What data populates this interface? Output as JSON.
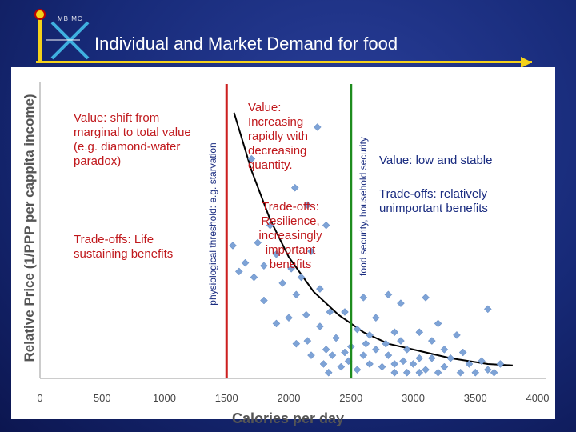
{
  "header": {
    "title": "Individual and Market Demand for food",
    "logo_text": "MB MC"
  },
  "annotations": {
    "left_value": "Value: shift from marginal to total value (e.g. diamond-water paradox)",
    "left_tradeoff": "Trade-offs: Life sustaining benefits",
    "middle_value": "Value: Increasing rapidly with decreasing quantity.",
    "middle_tradeoff": "Trade-offs: Resilience, increasingly important benefits",
    "right_value": "Value: low and stable",
    "right_tradeoff": "Trade-offs: relatively unimportant benefits",
    "threshold_red": "physiological threshold: e.g. starvation",
    "threshold_green": "food security, household security"
  },
  "colors": {
    "red_line": "#cc1f1f",
    "green_line": "#1e8c1e",
    "points": "#7ea3d6",
    "curve": "#000000",
    "red_text": "#c0181c",
    "blue_text": "#1a2c80"
  },
  "chart_data": {
    "type": "scatter",
    "xlabel": "Calories per day",
    "ylabel": "Relative Price (1/PPP per cappita income)",
    "xlim": [
      0,
      4000
    ],
    "xticks": [
      "0",
      "500",
      "1000",
      "1500",
      "2000",
      "2500",
      "3000",
      "3500",
      "4000"
    ],
    "y_axis_ticks_shown": false,
    "grid": false,
    "vertical_lines": [
      {
        "x": 1500,
        "label": "physiological threshold: e.g. starvation",
        "color": "red"
      },
      {
        "x": 2500,
        "label": "food security, household security",
        "color": "green"
      }
    ],
    "y_scale": "relative (0 = lowest, 1 = top of plot area)",
    "fit_curve": {
      "form": "exponential decay",
      "points": [
        [
          1560,
          0.92
        ],
        [
          1700,
          0.72
        ],
        [
          1850,
          0.55
        ],
        [
          2000,
          0.42
        ],
        [
          2200,
          0.3
        ],
        [
          2400,
          0.22
        ],
        [
          2600,
          0.16
        ],
        [
          2800,
          0.12
        ],
        [
          3000,
          0.1
        ],
        [
          3300,
          0.07
        ],
        [
          3600,
          0.05
        ],
        [
          3800,
          0.045
        ]
      ]
    },
    "points": [
      [
        2230,
        0.87
      ],
      [
        1700,
        0.76
      ],
      [
        2050,
        0.66
      ],
      [
        2150,
        0.6
      ],
      [
        1850,
        0.53
      ],
      [
        2300,
        0.53
      ],
      [
        1750,
        0.47
      ],
      [
        1550,
        0.46
      ],
      [
        2180,
        0.44
      ],
      [
        1900,
        0.43
      ],
      [
        1650,
        0.4
      ],
      [
        1800,
        0.39
      ],
      [
        2020,
        0.38
      ],
      [
        1600,
        0.37
      ],
      [
        2100,
        0.35
      ],
      [
        1720,
        0.35
      ],
      [
        1950,
        0.33
      ],
      [
        2250,
        0.31
      ],
      [
        2060,
        0.29
      ],
      [
        1800,
        0.27
      ],
      [
        2600,
        0.28
      ],
      [
        3100,
        0.28
      ],
      [
        2800,
        0.29
      ],
      [
        2900,
        0.26
      ],
      [
        3600,
        0.24
      ],
      [
        2450,
        0.23
      ],
      [
        2140,
        0.22
      ],
      [
        2330,
        0.23
      ],
      [
        2000,
        0.21
      ],
      [
        2700,
        0.21
      ],
      [
        1900,
        0.19
      ],
      [
        3200,
        0.19
      ],
      [
        2250,
        0.18
      ],
      [
        2550,
        0.17
      ],
      [
        2850,
        0.16
      ],
      [
        3050,
        0.16
      ],
      [
        2650,
        0.15
      ],
      [
        3350,
        0.15
      ],
      [
        2380,
        0.14
      ],
      [
        2150,
        0.13
      ],
      [
        2620,
        0.12
      ],
      [
        2780,
        0.12
      ],
      [
        2900,
        0.13
      ],
      [
        3150,
        0.13
      ],
      [
        2060,
        0.12
      ],
      [
        2500,
        0.11
      ],
      [
        2700,
        0.1
      ],
      [
        2950,
        0.1
      ],
      [
        3250,
        0.1
      ],
      [
        2300,
        0.1
      ],
      [
        2450,
        0.09
      ],
      [
        3400,
        0.09
      ],
      [
        2350,
        0.08
      ],
      [
        2600,
        0.08
      ],
      [
        2800,
        0.08
      ],
      [
        2180,
        0.08
      ],
      [
        3050,
        0.07
      ],
      [
        3150,
        0.07
      ],
      [
        3300,
        0.07
      ],
      [
        2480,
        0.06
      ],
      [
        2920,
        0.06
      ],
      [
        3550,
        0.06
      ],
      [
        2280,
        0.05
      ],
      [
        2650,
        0.05
      ],
      [
        2850,
        0.05
      ],
      [
        3000,
        0.05
      ],
      [
        3450,
        0.05
      ],
      [
        3700,
        0.05
      ],
      [
        2420,
        0.04
      ],
      [
        2750,
        0.04
      ],
      [
        3250,
        0.04
      ],
      [
        3100,
        0.03
      ],
      [
        3600,
        0.03
      ],
      [
        2550,
        0.03
      ],
      [
        2950,
        0.02
      ],
      [
        3380,
        0.02
      ],
      [
        3500,
        0.02
      ],
      [
        2320,
        0.02
      ],
      [
        3650,
        0.02
      ],
      [
        3050,
        0.02
      ],
      [
        3200,
        0.02
      ],
      [
        2850,
        0.02
      ]
    ]
  }
}
